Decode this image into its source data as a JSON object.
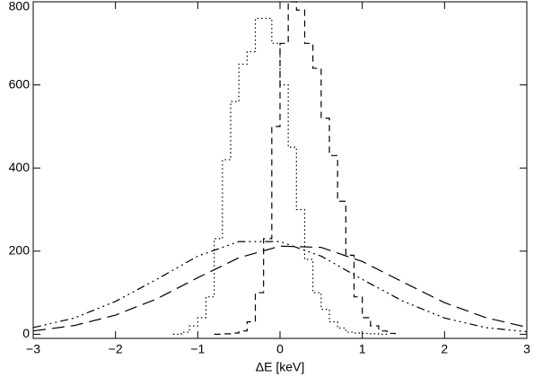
{
  "chart_data": {
    "type": "line",
    "x_label": "ΔE [keV]",
    "xlim": [
      -3,
      3
    ],
    "ylim": [
      -10,
      800
    ],
    "xticks": [
      {
        "value": -3,
        "label": "−3"
      },
      {
        "value": -2,
        "label": "−2"
      },
      {
        "value": -1,
        "label": "−1"
      },
      0,
      1,
      2,
      3
    ],
    "yticks": [
      0,
      200,
      400,
      600,
      800
    ],
    "series": [
      {
        "style": "dotted",
        "step": true,
        "color": "#000000",
        "x": [
          -1.3,
          -1.2,
          -1.1,
          -1.0,
          -0.9,
          -0.8,
          -0.7,
          -0.6,
          -0.5,
          -0.4,
          -0.3,
          -0.2,
          -0.1,
          0.0,
          0.1,
          0.2,
          0.3,
          0.4,
          0.5,
          0.6,
          0.7,
          0.8,
          0.9,
          1.0,
          1.1,
          1.2,
          1.3
        ],
        "values": [
          0,
          5,
          20,
          40,
          90,
          230,
          420,
          560,
          650,
          680,
          760,
          760,
          700,
          600,
          450,
          300,
          180,
          100,
          60,
          30,
          15,
          5,
          3,
          2,
          1,
          0,
          0
        ]
      },
      {
        "style": "dashed",
        "step": true,
        "color": "#000000",
        "x": [
          -0.8,
          -0.7,
          -0.6,
          -0.5,
          -0.4,
          -0.3,
          -0.2,
          -0.1,
          0.0,
          0.1,
          0.2,
          0.3,
          0.4,
          0.5,
          0.6,
          0.7,
          0.8,
          0.9,
          1.0,
          1.1,
          1.2,
          1.3,
          1.4
        ],
        "values": [
          0,
          1,
          3,
          8,
          30,
          100,
          230,
          500,
          700,
          800,
          780,
          700,
          640,
          520,
          430,
          320,
          190,
          90,
          40,
          20,
          8,
          2,
          0
        ]
      },
      {
        "style": "dashdot",
        "step": false,
        "color": "#000000",
        "x": [
          -3,
          -2.5,
          -2,
          -1.5,
          -1,
          -0.5,
          0,
          0.5,
          1,
          1.5,
          2,
          2.5,
          3
        ],
        "values": [
          16,
          39,
          79,
          132,
          188,
          223,
          223,
          188,
          132,
          79,
          39,
          16,
          6
        ]
      },
      {
        "style": "longdash",
        "step": false,
        "color": "#000000",
        "x": [
          -3,
          -2.5,
          -2,
          -1.5,
          -1,
          -0.5,
          0,
          0.5,
          1,
          1.5,
          2,
          2.5,
          3
        ],
        "values": [
          8,
          21,
          46,
          85,
          136,
          184,
          212,
          209,
          175,
          125,
          76,
          40,
          17
        ]
      }
    ]
  }
}
